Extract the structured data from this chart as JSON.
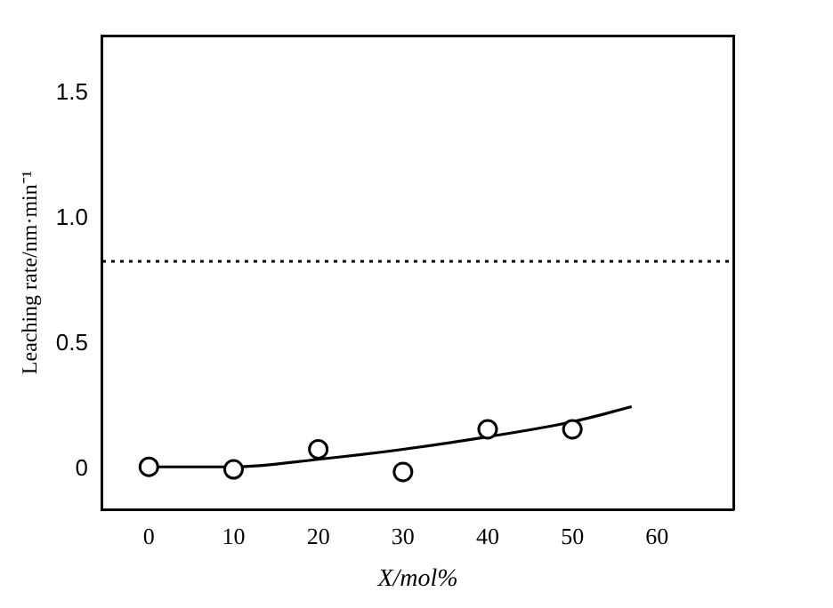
{
  "chart_data": {
    "type": "scatter",
    "xlabel": "X/mol%",
    "ylabel": "Leaching rate/nm·min⁻¹",
    "xlim": [
      -5.5,
      69
    ],
    "ylim": [
      -0.16,
      1.73
    ],
    "xticks": [
      0,
      10,
      20,
      30,
      40,
      50,
      60
    ],
    "yticks": [
      0,
      {
        "value": 0.5,
        "label": "0.5"
      },
      {
        "value": 1.0,
        "label": "1.0"
      },
      {
        "value": 1.5,
        "label": "1.5"
      }
    ],
    "series": [
      {
        "type": "scatter",
        "color": "#000000",
        "marker": "circle",
        "x": [
          0,
          10,
          20,
          30,
          40,
          50
        ],
        "values": [
          0.01,
          0.0,
          0.08,
          -0.01,
          0.16,
          0.16
        ]
      },
      {
        "type": "line",
        "color": "#000000",
        "line_style": "solid",
        "x": [
          0,
          10,
          20,
          30,
          40,
          50,
          57
        ],
        "values": [
          0.01,
          0.01,
          0.04,
          0.08,
          0.13,
          0.19,
          0.25
        ]
      }
    ],
    "ref_lines": [
      {
        "axis": "y",
        "value": 0.83,
        "line_style": "dotted",
        "color": "#000000"
      }
    ],
    "grid": false,
    "legend": false
  }
}
